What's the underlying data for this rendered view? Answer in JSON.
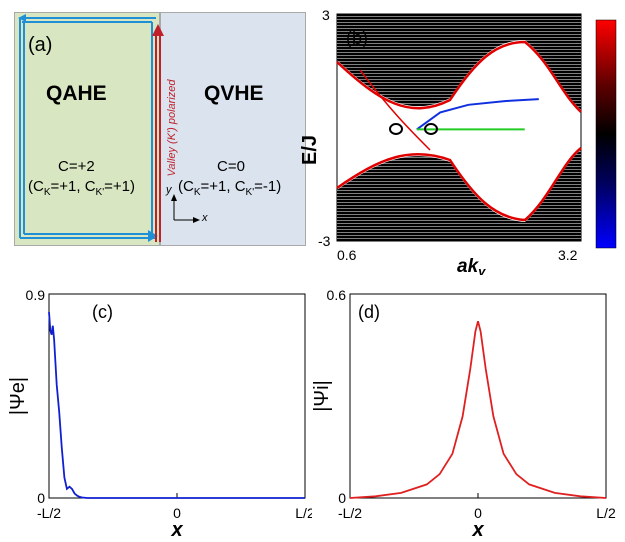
{
  "panel_a": {
    "label": "(a)",
    "left_title": "QAHE",
    "right_title": "QVHE",
    "left_chern": "C=+2",
    "left_detail": "(C",
    "right_chern": "C=0",
    "valley_text": "Valley (K') polarized",
    "axis_y": "y",
    "axis_x": "x",
    "sub_K": "K",
    "sub_Kp": "K'",
    "left_vals": [
      "=+1, C",
      "=+1)"
    ],
    "right_vals": [
      "=+1, C",
      "=-1)"
    ],
    "colors": {
      "qahe": "#d9e6c2",
      "qvhe": "#dbe3ee",
      "edge_blue": "#1f8fd6",
      "edge_red": "#c0202a"
    }
  },
  "chart_data": [
    {
      "type": "line",
      "panel": "(b)",
      "ylabel": "E/J",
      "xlabel": "aky",
      "xlim": [
        0.6,
        3.2
      ],
      "ylim": [
        -3,
        3
      ],
      "x_ticks": [
        "0.6",
        "3.2"
      ],
      "y_ticks": [
        "3",
        "-3"
      ],
      "colorbar": [
        "#ff0000",
        "#000000",
        "#0000ff"
      ],
      "series": [
        {
          "color": "blue",
          "x": [
            1.45,
            1.7,
            2.0,
            2.4,
            2.75
          ],
          "y": [
            -0.05,
            0.4,
            0.6,
            0.7,
            0.75
          ]
        },
        {
          "color": "green",
          "x": [
            1.45,
            2.6
          ],
          "y": [
            -0.05,
            -0.05
          ]
        }
      ]
    },
    {
      "type": "line",
      "panel": "(c)",
      "ylabel": "|Ψe|",
      "xlabel": "x",
      "ylim": [
        0,
        0.9
      ],
      "x_ticks": [
        "-L/2",
        "0",
        "L/2"
      ],
      "y_ticks": [
        "0.9",
        "0"
      ],
      "series": [
        {
          "color": "#1020d0",
          "x": [
            -0.5,
            -0.495,
            -0.49,
            -0.485,
            -0.48,
            -0.475,
            -0.47,
            -0.46,
            -0.45,
            -0.44,
            -0.43,
            -0.42,
            -0.41,
            -0.4,
            -0.39,
            -0.38,
            -0.37,
            -0.35,
            -0.3,
            0,
            0.5
          ],
          "y": [
            0.82,
            0.74,
            0.72,
            0.76,
            0.7,
            0.6,
            0.5,
            0.38,
            0.22,
            0.09,
            0.04,
            0.05,
            0.04,
            0.02,
            0.01,
            0.005,
            0.002,
            0.0,
            0.0,
            0.0,
            0.0
          ]
        }
      ]
    },
    {
      "type": "line",
      "panel": "(d)",
      "ylabel": "|Ψi|",
      "xlabel": "x",
      "ylim": [
        0,
        0.6
      ],
      "x_ticks": [
        "-L/2",
        "0",
        "L/2"
      ],
      "y_ticks": [
        "0.6",
        "0"
      ],
      "series": [
        {
          "color": "#e02020",
          "x": [
            -0.5,
            -0.4,
            -0.3,
            -0.2,
            -0.15,
            -0.1,
            -0.06,
            -0.03,
            -0.01,
            0,
            0.01,
            0.03,
            0.06,
            0.1,
            0.15,
            0.2,
            0.3,
            0.4,
            0.5
          ],
          "y": [
            0.0,
            0.005,
            0.015,
            0.04,
            0.07,
            0.13,
            0.24,
            0.38,
            0.49,
            0.52,
            0.49,
            0.38,
            0.24,
            0.13,
            0.07,
            0.04,
            0.015,
            0.005,
            0.0
          ]
        }
      ]
    }
  ]
}
